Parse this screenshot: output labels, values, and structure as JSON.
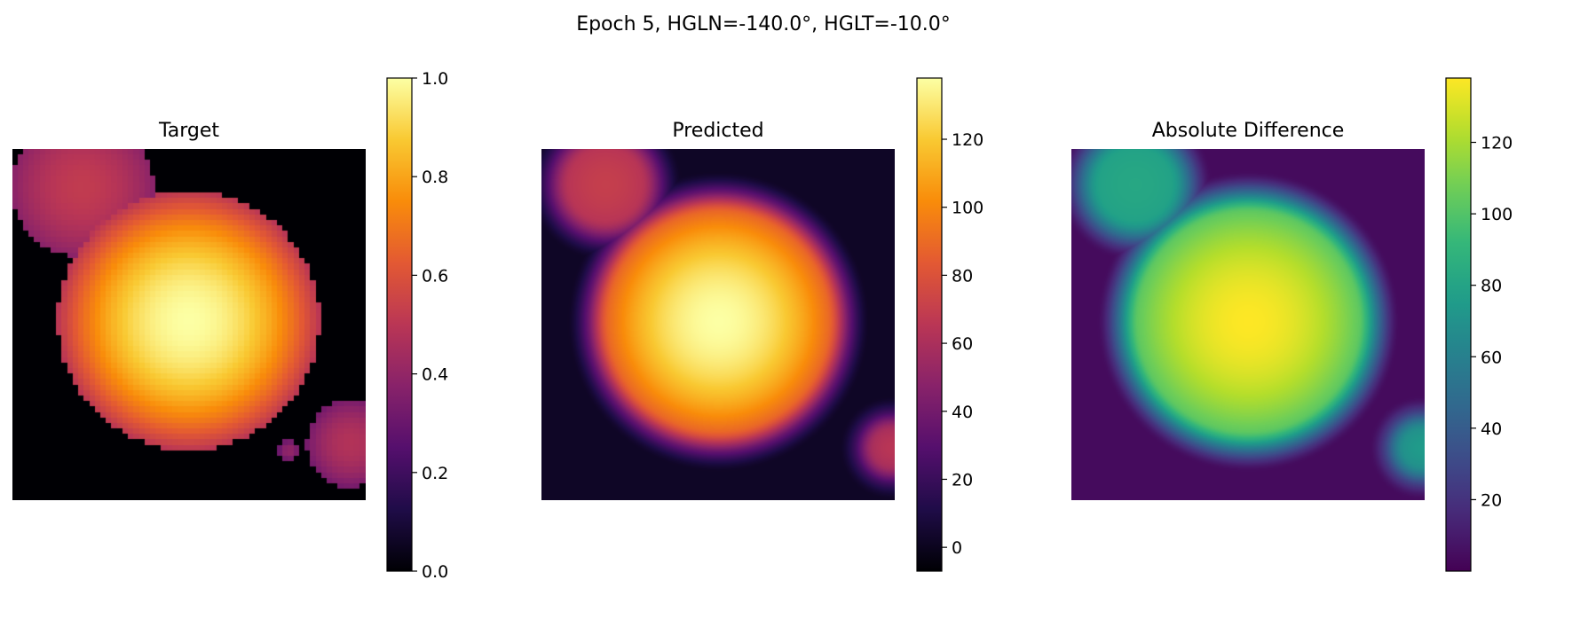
{
  "suptitle": "Epoch 5, HGLN=-140.0°, HGLT=-10.0°",
  "colors": {
    "background": "#ffffff",
    "text": "#000000",
    "frame": "#000000"
  },
  "chart_data": [
    {
      "type": "heatmap",
      "title": "Target",
      "colormap": "inferno",
      "colorbar": {
        "min": 0.0,
        "max": 1.0,
        "ticks": [
          0.0,
          0.2,
          0.4,
          0.6,
          0.8,
          1.0
        ],
        "tick_labels": [
          "0.0",
          "0.2",
          "0.4",
          "0.6",
          "0.8",
          "1.0"
        ]
      },
      "grid_resolution": 64,
      "value_range": [
        0.0,
        1.0
      ],
      "pixelated": true,
      "background_value": 0.0,
      "blobs": [
        {
          "kind": "disk",
          "cx": 0.5,
          "cy": 0.49,
          "r": 0.37,
          "center_value": 1.0,
          "edge_value": 0.5
        },
        {
          "kind": "disk",
          "cx": 0.2,
          "cy": 0.11,
          "r": 0.2,
          "center_value": 0.52,
          "edge_value": 0.38
        },
        {
          "kind": "disk",
          "cx": 0.96,
          "cy": 0.84,
          "r": 0.125,
          "center_value": 0.48,
          "edge_value": 0.33
        },
        {
          "kind": "disk",
          "cx": 0.785,
          "cy": 0.86,
          "r": 0.03,
          "center_value": 0.4,
          "edge_value": 0.3
        }
      ]
    },
    {
      "type": "heatmap",
      "title": "Predicted",
      "colormap": "inferno",
      "colorbar": {
        "min": -7,
        "max": 138,
        "ticks": [
          0,
          20,
          40,
          60,
          80,
          100,
          120
        ],
        "tick_labels": [
          "0",
          "20",
          "40",
          "60",
          "80",
          "100",
          "120"
        ]
      },
      "grid_resolution": 64,
      "value_range": [
        -7,
        138
      ],
      "pixelated": false,
      "background_value": 2,
      "blobs": [
        {
          "kind": "soft",
          "cx": 0.5,
          "cy": 0.49,
          "r": 0.37,
          "center_value": 138,
          "edge_value": 70,
          "falloff": 0.06
        },
        {
          "kind": "soft",
          "cx": 0.18,
          "cy": 0.1,
          "r": 0.16,
          "center_value": 70,
          "edge_value": 58,
          "falloff": 0.06
        },
        {
          "kind": "soft",
          "cx": 0.99,
          "cy": 0.85,
          "r": 0.1,
          "center_value": 65,
          "edge_value": 45,
          "falloff": 0.05
        }
      ]
    },
    {
      "type": "heatmap",
      "title": "Absolute Difference",
      "colormap": "viridis",
      "colorbar": {
        "min": 0,
        "max": 138,
        "ticks": [
          20,
          40,
          60,
          80,
          100,
          120
        ],
        "tick_labels": [
          "20",
          "40",
          "60",
          "80",
          "100",
          "120"
        ]
      },
      "grid_resolution": 64,
      "value_range": [
        0,
        138
      ],
      "pixelated": false,
      "background_value": 4,
      "blobs": [
        {
          "kind": "soft",
          "cx": 0.5,
          "cy": 0.49,
          "r": 0.37,
          "center_value": 138,
          "edge_value": 90,
          "falloff": 0.06
        },
        {
          "kind": "soft",
          "cx": 0.18,
          "cy": 0.1,
          "r": 0.16,
          "center_value": 82,
          "edge_value": 75,
          "falloff": 0.06
        },
        {
          "kind": "soft",
          "cx": 0.99,
          "cy": 0.85,
          "r": 0.1,
          "center_value": 75,
          "edge_value": 55,
          "falloff": 0.05
        }
      ]
    }
  ]
}
